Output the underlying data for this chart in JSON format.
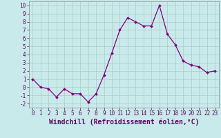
{
  "x": [
    0,
    1,
    2,
    3,
    4,
    5,
    6,
    7,
    8,
    9,
    10,
    11,
    12,
    13,
    14,
    15,
    16,
    17,
    18,
    19,
    20,
    21,
    22,
    23
  ],
  "y": [
    1,
    0,
    -0.2,
    -1.2,
    -0.2,
    -0.8,
    -0.8,
    -1.8,
    -0.8,
    1.5,
    4.2,
    7.0,
    8.5,
    8.0,
    7.5,
    7.5,
    10.0,
    6.5,
    5.2,
    3.2,
    2.7,
    2.5,
    1.8,
    2.0
  ],
  "line_color": "#800080",
  "marker": "D",
  "marker_size": 2.0,
  "linewidth": 0.9,
  "xlabel": "Windchill (Refroidissement éolien,°C)",
  "xlim": [
    -0.5,
    23.5
  ],
  "ylim": [
    -2.5,
    10.5
  ],
  "yticks": [
    -2,
    -1,
    0,
    1,
    2,
    3,
    4,
    5,
    6,
    7,
    8,
    9,
    10
  ],
  "xticks": [
    0,
    1,
    2,
    3,
    4,
    5,
    6,
    7,
    8,
    9,
    10,
    11,
    12,
    13,
    14,
    15,
    16,
    17,
    18,
    19,
    20,
    21,
    22,
    23
  ],
  "bg_color": "#c8eaea",
  "grid_color": "#b0c8c8",
  "tick_fontsize": 5.5,
  "xlabel_fontsize": 7.0
}
